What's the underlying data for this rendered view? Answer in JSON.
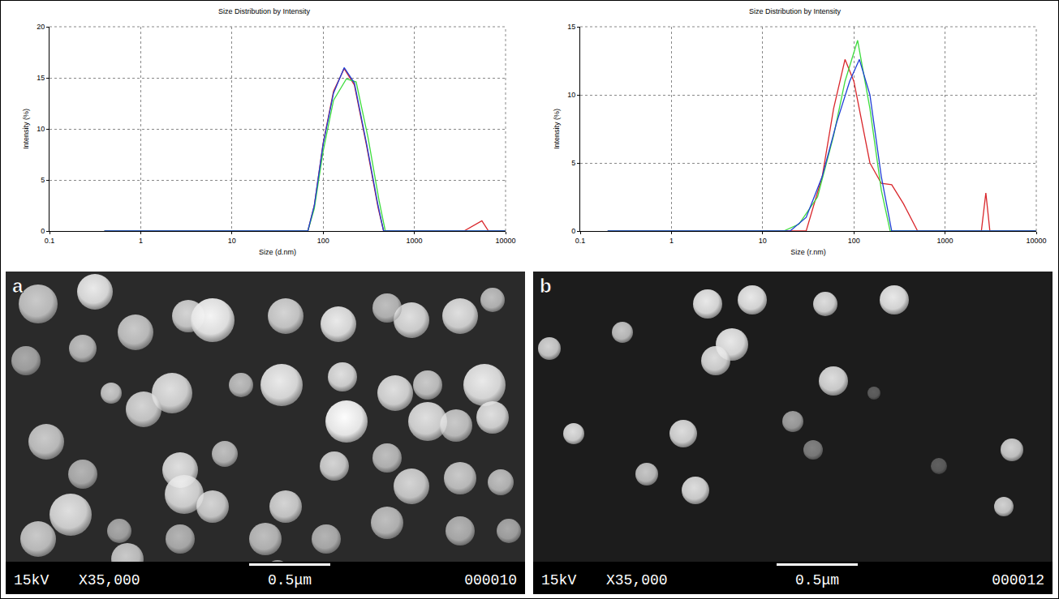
{
  "chart_data": [
    {
      "type": "line",
      "title": "Size Distribution by Intensity",
      "x_label": "Size (d.nm)",
      "y_label": "Intensity (%)",
      "log": "x",
      "grid": true,
      "xlim": [
        0.1,
        10000
      ],
      "xticks": [
        0.1,
        1,
        10,
        100,
        1000,
        10000
      ],
      "ylim": [
        0,
        20
      ],
      "yticks": [
        0,
        5,
        10,
        15,
        20
      ],
      "series": [
        {
          "color": "#d9262b",
          "x": [
            0.4,
            10,
            68,
            80,
            100,
            130,
            170,
            220,
            300,
            400,
            460,
            3500,
            5500,
            6500,
            10000
          ],
          "values": [
            0,
            0,
            0,
            2.5,
            8.6,
            13.7,
            15.9,
            14.3,
            8.3,
            2.3,
            0,
            0,
            1,
            0,
            0
          ]
        },
        {
          "color": "#3ddc3d",
          "x": [
            0.4,
            10,
            68,
            80,
            100,
            130,
            180,
            230,
            310,
            410,
            480,
            10000
          ],
          "values": [
            0,
            0,
            0,
            2.2,
            7.8,
            12.8,
            14.9,
            14.6,
            9.2,
            3,
            0,
            0
          ]
        },
        {
          "color": "#1f3fd6",
          "x": [
            0.4,
            10,
            68,
            80,
            100,
            130,
            170,
            220,
            300,
            400,
            460,
            10000
          ],
          "values": [
            0,
            0,
            0,
            2.5,
            8.5,
            13.5,
            16,
            14.5,
            8.5,
            2.5,
            0,
            0
          ]
        }
      ]
    },
    {
      "type": "line",
      "title": "Size Distribution by Intensity",
      "x_label": "Size (r.nm)",
      "y_label": "Intensity (%)",
      "log": "x",
      "grid": true,
      "xlim": [
        0.1,
        10000
      ],
      "xticks": [
        0.1,
        1,
        10,
        100,
        1000,
        10000
      ],
      "ylim": [
        0,
        15
      ],
      "yticks": [
        0,
        5,
        10,
        15
      ],
      "series": [
        {
          "color": "#d9262b",
          "x": [
            0.2,
            20,
            30,
            45,
            60,
            80,
            100,
            150,
            200,
            260,
            350,
            500,
            1000,
            2500,
            2800,
            3100,
            10000
          ],
          "values": [
            0,
            0,
            0,
            4,
            9,
            12.6,
            11,
            5,
            3.5,
            3.4,
            2,
            0,
            0,
            0,
            2.8,
            0,
            0
          ]
        },
        {
          "color": "#3ddc3d",
          "x": [
            0.2,
            17,
            25,
            40,
            60,
            80,
            110,
            150,
            200,
            250,
            10000
          ],
          "values": [
            0,
            0,
            0.5,
            2.5,
            7,
            11,
            14,
            9,
            3,
            0,
            0
          ]
        },
        {
          "color": "#1f3fd6",
          "x": [
            0.2,
            20,
            30,
            45,
            65,
            90,
            115,
            150,
            200,
            260,
            10000
          ],
          "values": [
            0,
            0,
            1,
            4,
            8,
            11,
            12.6,
            10,
            4,
            0,
            0
          ]
        }
      ]
    }
  ],
  "images": [
    {
      "label": "a",
      "voltage": "15kV",
      "magnification": "X35,000",
      "scale": "0.5μm",
      "number": "000010"
    },
    {
      "label": "b",
      "voltage": "15kV",
      "magnification": "X35,000",
      "scale": "0.5μm",
      "number": "000012"
    }
  ]
}
